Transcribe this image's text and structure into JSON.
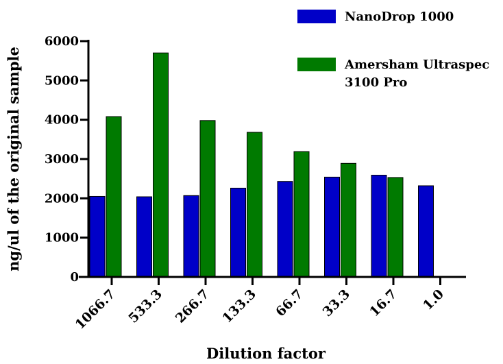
{
  "chart_data": {
    "type": "bar",
    "title": "",
    "xlabel": "Dilution factor",
    "ylabel": "ng/ul of the original sample",
    "ylim": [
      0,
      6000
    ],
    "yticks": [
      "0",
      "1000",
      "2000",
      "3000",
      "4000",
      "5000",
      "6000"
    ],
    "categories": [
      "1066.7",
      "533.3",
      "266.7",
      "133.3",
      "66.7",
      "33.3",
      "16.7",
      "1.0"
    ],
    "series": [
      {
        "name": "NanoDrop 1000",
        "color": "#0000c8",
        "values": [
          2050,
          2040,
          2070,
          2260,
          2430,
          2540,
          2590,
          2320
        ]
      },
      {
        "name": "Amersham Ultraspec 3100 Pro",
        "color": "#007a00",
        "values": [
          4080,
          5700,
          3980,
          3680,
          3190,
          2890,
          2530,
          null
        ]
      }
    ],
    "legend": {
      "position": "top-right",
      "items": [
        {
          "lines": [
            "NanoDrop 1000"
          ]
        },
        {
          "lines": [
            "Amersham Ultraspec",
            "3100 Pro"
          ]
        }
      ]
    },
    "grid": false
  }
}
